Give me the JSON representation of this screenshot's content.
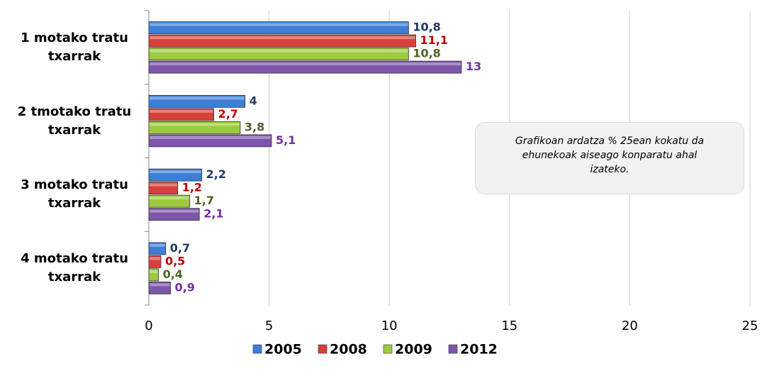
{
  "chart_data": {
    "type": "hbar",
    "categories": [
      "1 motako tratu txarrak",
      "2 tmotako tratu txarrak",
      "3 motako tratu txarrak",
      "4 motako tratu txarrak"
    ],
    "series": [
      {
        "name": "2005",
        "color": "#3d7fd6",
        "label_color": "#1f3b63",
        "values": [
          10.8,
          4,
          2.2,
          0.7
        ],
        "value_labels": [
          "10,8",
          "4",
          "2,2",
          "0,7"
        ]
      },
      {
        "name": "2008",
        "color": "#d8413a",
        "label_color": "#c00000",
        "values": [
          11.1,
          2.7,
          1.2,
          0.5
        ],
        "value_labels": [
          "11,1",
          "2,7",
          "1,2",
          "0,5"
        ]
      },
      {
        "name": "2009",
        "color": "#9ccb3f",
        "label_color": "#4f6228",
        "values": [
          10.8,
          3.8,
          1.7,
          0.4
        ],
        "value_labels": [
          "10,8",
          "3,8",
          "1,7",
          "0,4"
        ]
      },
      {
        "name": "2012",
        "color": "#7d55aa",
        "label_color": "#7030a0",
        "values": [
          13,
          5.1,
          2.1,
          0.9
        ],
        "value_labels": [
          "13",
          "5,1",
          "2,1",
          "0,9"
        ]
      }
    ],
    "xlim": [
      0,
      25
    ],
    "xticks": [
      0,
      5,
      10,
      15,
      20,
      25
    ],
    "grid": true,
    "annotation": "Grafikoan ardatza % 25ean kokatu da ehunekoak  aiseago konparatu ahal izateko."
  }
}
